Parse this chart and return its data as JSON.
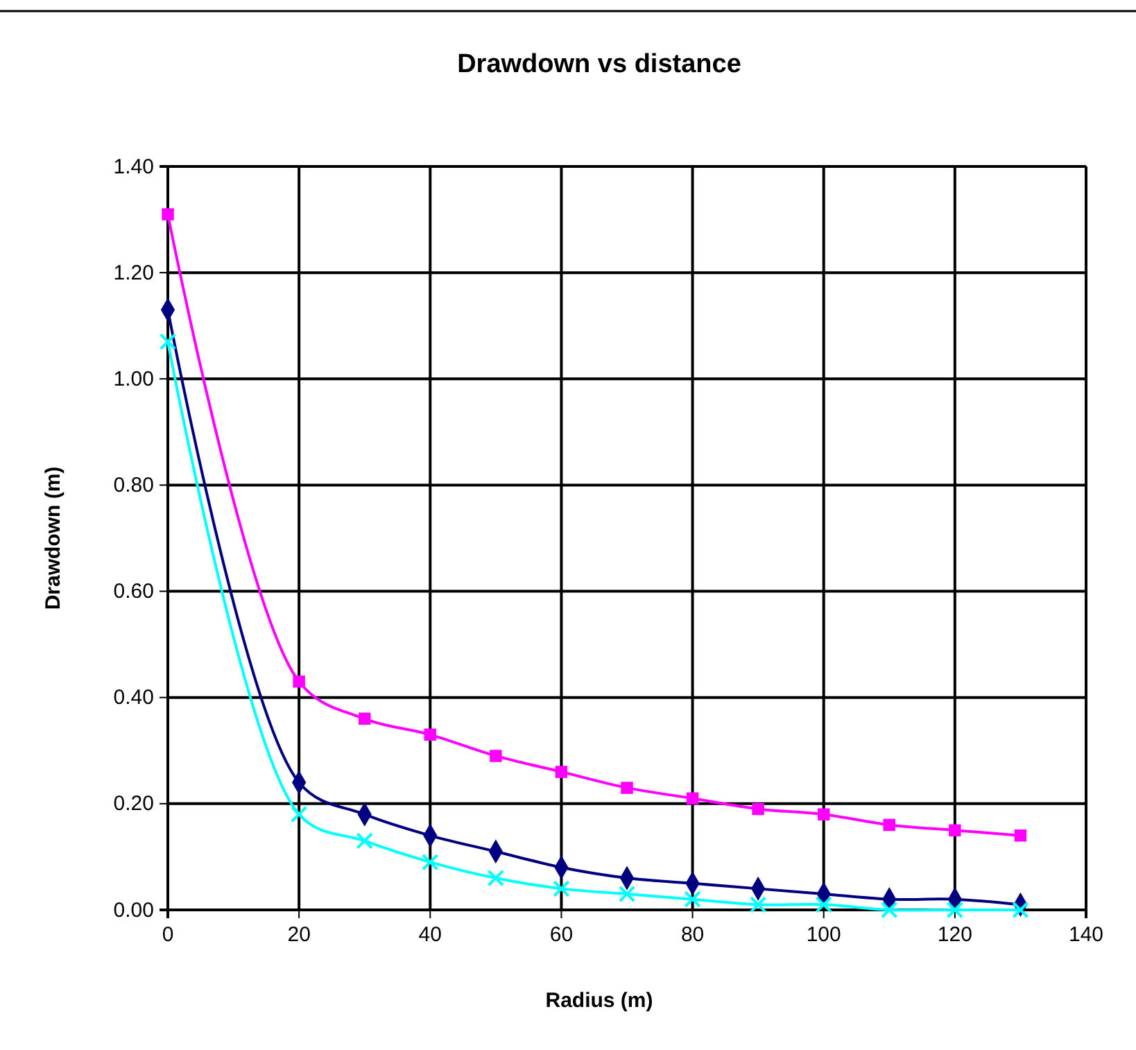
{
  "chart_data": {
    "type": "line",
    "title": "Drawdown vs distance",
    "xlabel": "Radius (m)",
    "ylabel": "Drawdown (m)",
    "x": [
      0,
      20,
      30,
      40,
      50,
      60,
      70,
      80,
      90,
      100,
      110,
      120,
      130
    ],
    "series": [
      {
        "color": "#ff00ff",
        "marker": "square",
        "values": [
          1.31,
          0.43,
          0.36,
          0.33,
          0.29,
          0.26,
          0.23,
          0.21,
          0.19,
          0.18,
          0.16,
          0.15,
          0.14
        ]
      },
      {
        "color": "#000080",
        "marker": "diamond",
        "values": [
          1.13,
          0.24,
          0.18,
          0.14,
          0.11,
          0.08,
          0.06,
          0.05,
          0.04,
          0.03,
          0.02,
          0.02,
          0.01
        ]
      },
      {
        "color": "#00ffff",
        "marker": "cross",
        "values": [
          1.07,
          0.18,
          0.13,
          0.09,
          0.06,
          0.04,
          0.03,
          0.02,
          0.01,
          0.01,
          0,
          0,
          0
        ]
      }
    ],
    "xlim": [
      0,
      140
    ],
    "xticks": [
      0,
      20,
      40,
      60,
      80,
      100,
      120,
      140
    ],
    "ylim": [
      0,
      1.4
    ],
    "yticks": [
      {
        "value": 0,
        "label": "0.00"
      },
      {
        "value": 0.2,
        "label": "0.20"
      },
      {
        "value": 0.4,
        "label": "0.40"
      },
      {
        "value": 0.6,
        "label": "0.60"
      },
      {
        "value": 0.8,
        "label": "0.80"
      },
      {
        "value": 1,
        "label": "1.00"
      },
      {
        "value": 1.2,
        "label": "1.20"
      },
      {
        "value": 1.4,
        "label": "1.40"
      }
    ],
    "grid": true
  }
}
